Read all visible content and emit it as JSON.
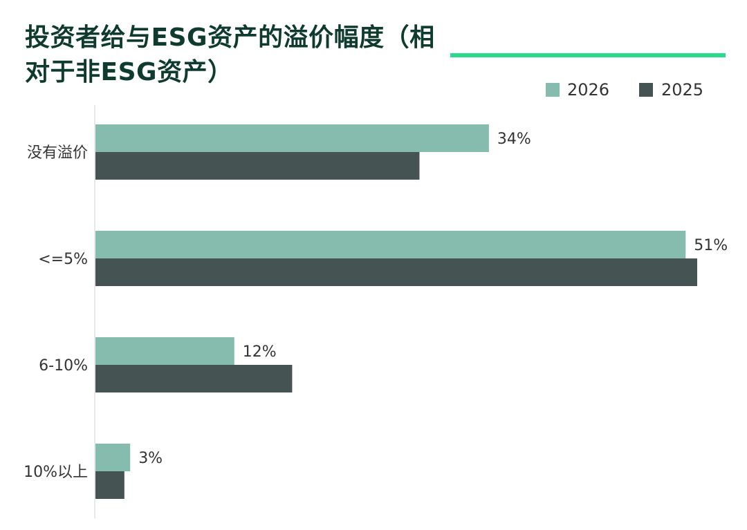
{
  "chart_data": {
    "type": "bar",
    "orientation": "horizontal",
    "title": "投资者给与ESG资产的溢价幅度（相对于非ESG资产）",
    "categories": [
      "没有溢价",
      "<=5%",
      "6-10%",
      "10%以上"
    ],
    "series": [
      {
        "name": "2026",
        "color": "#85bcae",
        "values": [
          34,
          51,
          12,
          3
        ],
        "labels": [
          "34%",
          "51%",
          "12%",
          "3%"
        ]
      },
      {
        "name": "2025",
        "color": "#455353",
        "values": [
          28,
          52,
          17,
          2.5
        ]
      }
    ],
    "xlim": [
      0,
      52
    ],
    "unit": "%",
    "grid": false,
    "legend_position": "top-right",
    "accent_color": "#2bd98c",
    "title_color": "#0f3b2e"
  }
}
